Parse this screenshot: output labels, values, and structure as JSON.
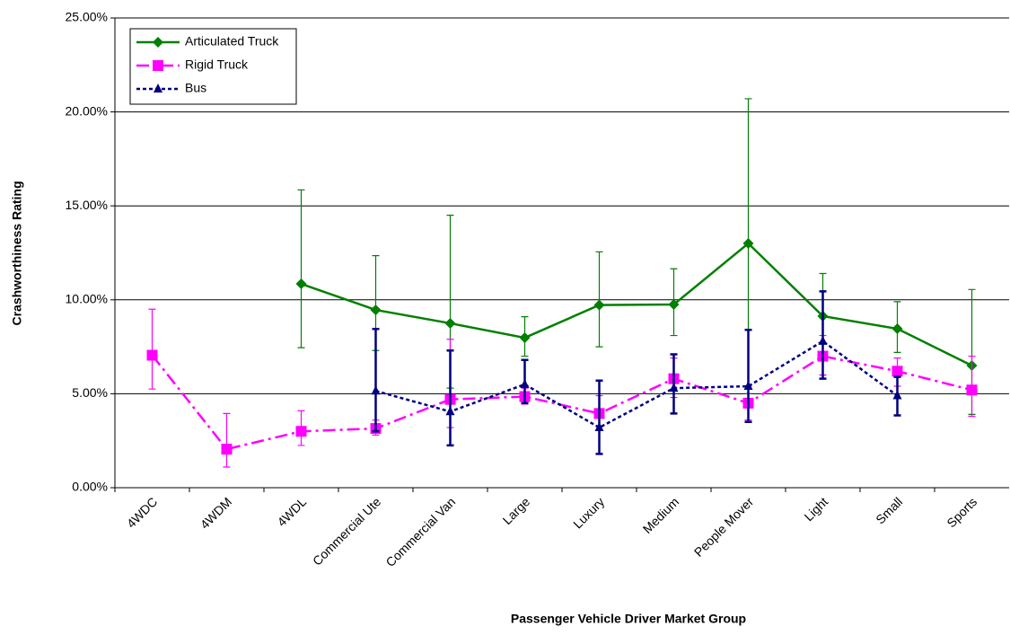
{
  "chart_data": {
    "type": "line",
    "x_label": "Passenger Vehicle Driver Market Group",
    "y_label": "Crashworthiness Rating",
    "categories": [
      "4WDC",
      "4WDM",
      "4WDL",
      "Commercial Ute",
      "Commercial Van",
      "Large",
      "Luxury",
      "Medium",
      "People Mover",
      "Light",
      "Small",
      "Sports"
    ],
    "ylim": [
      0,
      25
    ],
    "yticks": [
      {
        "value": 0,
        "label": "0.00%"
      },
      {
        "value": 5,
        "label": "5.00%"
      },
      {
        "value": 10,
        "label": "10.00%"
      },
      {
        "value": 15,
        "label": "15.00%"
      },
      {
        "value": 20,
        "label": "20.00%"
      },
      {
        "value": 25,
        "label": "25.00%"
      }
    ],
    "grid": true,
    "legend": "upper-left",
    "series": [
      {
        "name": "Articulated Truck",
        "color": "#008000",
        "marker": "diamond",
        "dash": "",
        "values": [
          null,
          null,
          10.85,
          9.46,
          8.75,
          7.98,
          9.72,
          9.75,
          13.0,
          9.13,
          8.46,
          6.5
        ],
        "lower": [
          null,
          null,
          7.45,
          7.3,
          5.3,
          7.0,
          7.5,
          8.1,
          5.0,
          6.0,
          7.2,
          3.9
        ],
        "upper": [
          null,
          null,
          15.85,
          12.35,
          14.5,
          9.1,
          12.55,
          11.65,
          20.7,
          11.4,
          9.9,
          10.55
        ]
      },
      {
        "name": "Rigid Truck",
        "color": "#ff00ff",
        "marker": "square",
        "dash": "14 5 3 5",
        "values": [
          7.05,
          2.05,
          3.0,
          3.15,
          4.7,
          4.85,
          3.95,
          5.8,
          4.5,
          7.0,
          6.2,
          5.2
        ],
        "lower": [
          5.25,
          1.1,
          2.25,
          2.8,
          3.2,
          4.45,
          3.3,
          4.8,
          3.6,
          6.0,
          5.4,
          3.8
        ],
        "upper": [
          9.5,
          3.95,
          4.1,
          3.6,
          7.9,
          5.3,
          4.9,
          6.9,
          5.4,
          8.1,
          6.9,
          7.0
        ]
      },
      {
        "name": "Bus",
        "color": "#000080",
        "marker": "triangle",
        "dash": "4 3",
        "values": [
          null,
          null,
          null,
          5.15,
          4.05,
          5.5,
          3.2,
          5.3,
          5.4,
          7.8,
          4.9,
          null
        ],
        "lower": [
          null,
          null,
          null,
          3.0,
          2.25,
          4.5,
          1.8,
          3.95,
          3.5,
          5.8,
          3.85,
          null
        ],
        "upper": [
          null,
          null,
          null,
          8.45,
          7.3,
          6.8,
          5.7,
          7.1,
          8.4,
          10.45,
          5.9,
          null
        ]
      }
    ]
  }
}
